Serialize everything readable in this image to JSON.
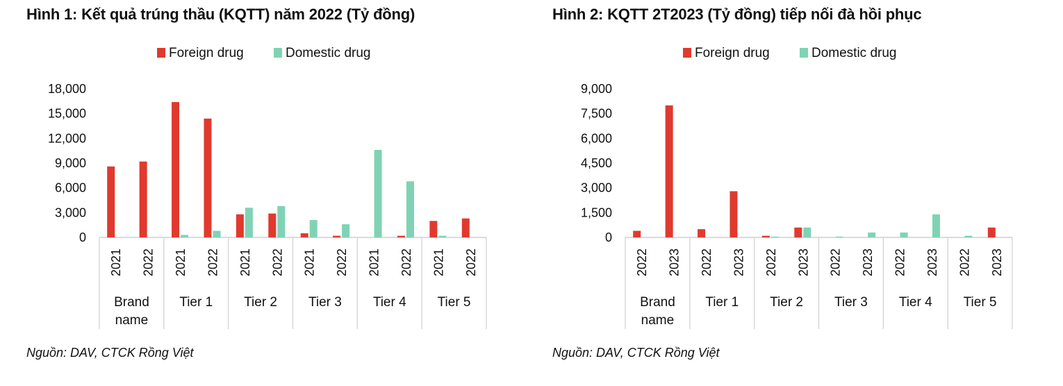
{
  "colors": {
    "foreign": "#e03a2e",
    "domestic": "#7fd3b4",
    "axis": "#cfcfcf"
  },
  "chart_data": [
    {
      "type": "bar",
      "title": "Hình 1: Kết quả trúng thầu (KQTT) năm 2022 (Tỷ đồng)",
      "source": "Nguồn: DAV, CTCK Rồng Việt",
      "groups": [
        "Brand name",
        "Tier 1",
        "Tier 2",
        "Tier 3",
        "Tier 4",
        "Tier 5"
      ],
      "years": [
        "2021",
        "2022"
      ],
      "series": [
        {
          "name": "Foreign drug",
          "values": [
            [
              8600,
              9200
            ],
            [
              16400,
              14400
            ],
            [
              2800,
              2900
            ],
            [
              500,
              200
            ],
            [
              0,
              200
            ],
            [
              2000,
              2300
            ]
          ]
        },
        {
          "name": "Domestic drug",
          "values": [
            [
              0,
              0
            ],
            [
              300,
              800
            ],
            [
              3600,
              3800
            ],
            [
              2100,
              1600
            ],
            [
              10600,
              6800
            ],
            [
              200,
              0
            ]
          ]
        }
      ],
      "yticks": [
        "18,000",
        "15,000",
        "12,000",
        "9,000",
        "6,000",
        "3,000",
        "0"
      ],
      "ylim": [
        0,
        18000
      ],
      "legend": "top-center"
    },
    {
      "type": "bar",
      "title": "Hình 2: KQTT 2T2023 (Tỷ đồng) tiếp nối đà hồi phục",
      "source": "Nguồn: DAV, CTCK Rồng Việt",
      "groups": [
        "Brand name",
        "Tier 1",
        "Tier 2",
        "Tier 3",
        "Tier 4",
        "Tier 5"
      ],
      "years": [
        "2022",
        "2023"
      ],
      "series": [
        {
          "name": "Foreign drug",
          "values": [
            [
              400,
              8000
            ],
            [
              500,
              2800
            ],
            [
              100,
              600
            ],
            [
              0,
              0
            ],
            [
              0,
              0
            ],
            [
              0,
              600
            ]
          ]
        },
        {
          "name": "Domestic drug",
          "values": [
            [
              0,
              0
            ],
            [
              0,
              0
            ],
            [
              50,
              600
            ],
            [
              50,
              300
            ],
            [
              300,
              1400
            ],
            [
              100,
              0
            ]
          ]
        }
      ],
      "yticks": [
        "9,000",
        "7,500",
        "6,000",
        "4,500",
        "3,000",
        "1,500",
        "0"
      ],
      "ylim": [
        0,
        9000
      ],
      "legend": "top-center"
    }
  ]
}
